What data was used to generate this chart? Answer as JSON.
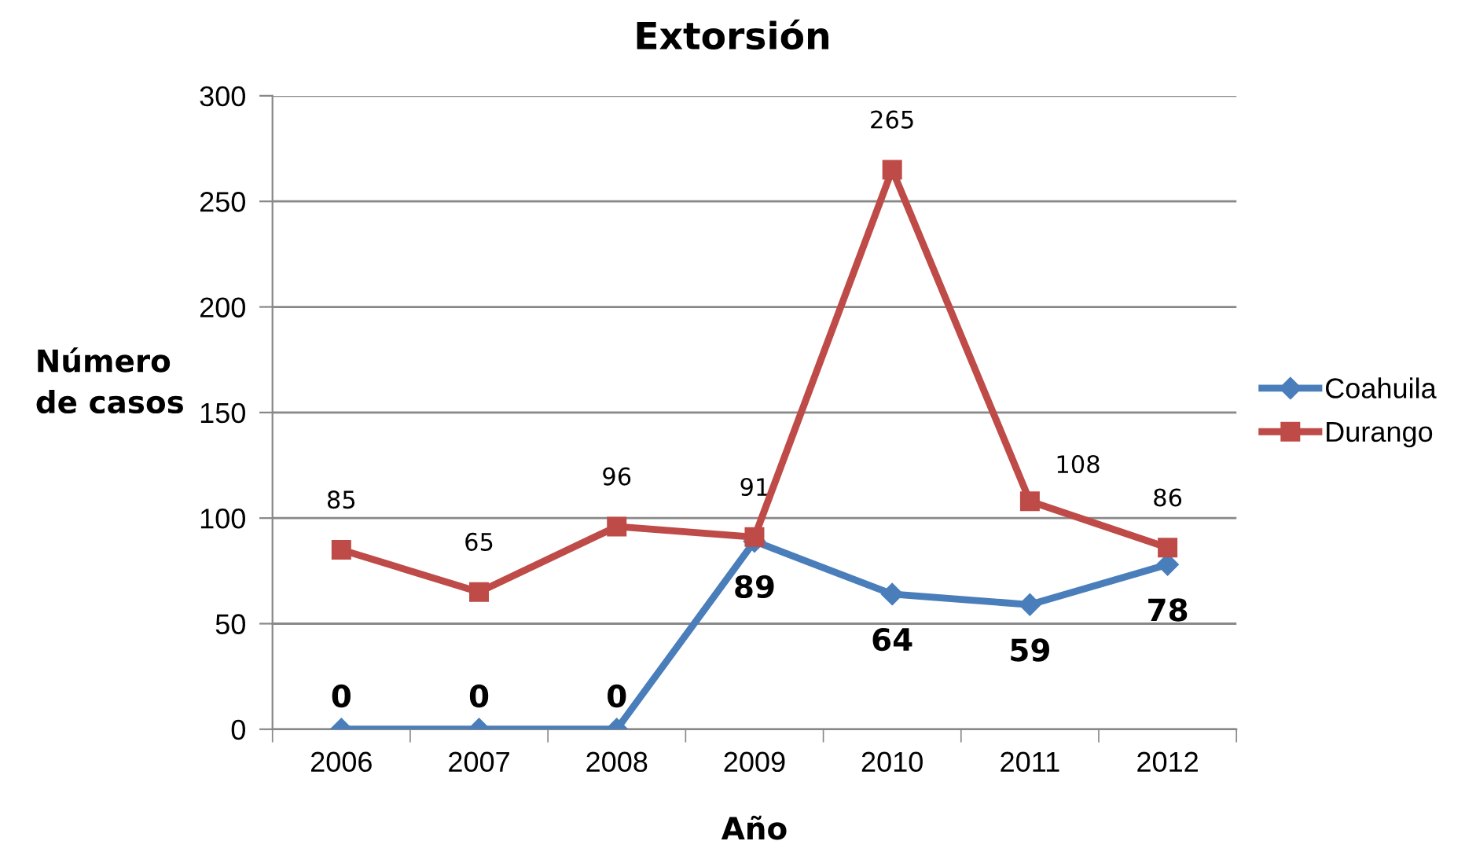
{
  "chart_data": {
    "type": "line",
    "title": "Extorsión",
    "xlabel": "Año",
    "ylabel": "Número\nde casos",
    "categories": [
      "2006",
      "2007",
      "2008",
      "2009",
      "2010",
      "2011",
      "2012"
    ],
    "series": [
      {
        "name": "Coahuila",
        "color": "#4a7ebb",
        "marker": "diamond",
        "values": [
          0,
          0,
          0,
          89,
          64,
          59,
          78
        ]
      },
      {
        "name": "Durango",
        "color": "#be4b48",
        "marker": "square",
        "values": [
          85,
          65,
          96,
          91,
          265,
          108,
          86
        ]
      }
    ],
    "ylim": [
      0,
      300
    ],
    "yticks": [
      0,
      50,
      100,
      150,
      200,
      250,
      300
    ],
    "grid": "y",
    "legend": "right",
    "data_labels": true,
    "line_style": "solid"
  }
}
